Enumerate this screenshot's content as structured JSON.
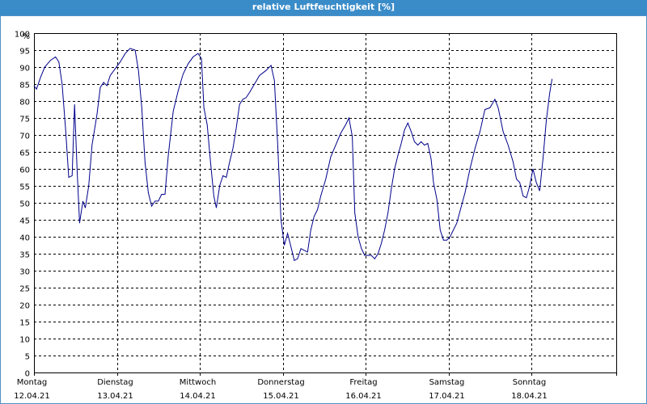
{
  "window": {
    "title": "relative Luftfeuchtigkeit [%]"
  },
  "colors": {
    "titlebar": "#3a8cc9",
    "line": "#00008b",
    "grid": "#000000"
  },
  "chart_data": {
    "type": "line",
    "title": "relative Luftfeuchtigkeit [%]",
    "ylabel": "%",
    "xlabel": "",
    "ylim": [
      0,
      100
    ],
    "yticks": [
      0,
      5,
      10,
      15,
      20,
      25,
      30,
      35,
      40,
      45,
      50,
      55,
      60,
      65,
      70,
      75,
      80,
      85,
      90,
      95,
      100
    ],
    "xlim": [
      0,
      7
    ],
    "grid": true,
    "day_labels": [
      {
        "day": "Montag",
        "date": "12.04.21"
      },
      {
        "day": "Dienstag",
        "date": "13.04.21"
      },
      {
        "day": "Mittwoch",
        "date": "14.04.21"
      },
      {
        "day": "Donnerstag",
        "date": "15.04.21"
      },
      {
        "day": "Freitag",
        "date": "16.04.21"
      },
      {
        "day": "Samstag",
        "date": "17.04.21"
      },
      {
        "day": "Sonntag",
        "date": "18.04.21"
      }
    ],
    "series": [
      {
        "values": [
          [
            0.0,
            84.5
          ],
          [
            0.03,
            83.5
          ],
          [
            0.08,
            87
          ],
          [
            0.13,
            90
          ],
          [
            0.2,
            92
          ],
          [
            0.26,
            93
          ],
          [
            0.3,
            91.5
          ],
          [
            0.34,
            85
          ],
          [
            0.38,
            72
          ],
          [
            0.42,
            57.5
          ],
          [
            0.46,
            58
          ],
          [
            0.49,
            79
          ],
          [
            0.52,
            60
          ],
          [
            0.55,
            44
          ],
          [
            0.59,
            50.5
          ],
          [
            0.62,
            48.5
          ],
          [
            0.66,
            55
          ],
          [
            0.7,
            67
          ],
          [
            0.76,
            76
          ],
          [
            0.8,
            84
          ],
          [
            0.84,
            85.5
          ],
          [
            0.88,
            84.5
          ],
          [
            0.92,
            87.5
          ],
          [
            0.98,
            89.5
          ],
          [
            1.04,
            91.5
          ],
          [
            1.1,
            94
          ],
          [
            1.16,
            95.5
          ],
          [
            1.22,
            95
          ],
          [
            1.26,
            89
          ],
          [
            1.3,
            78
          ],
          [
            1.34,
            62
          ],
          [
            1.38,
            53
          ],
          [
            1.42,
            49
          ],
          [
            1.46,
            50.5
          ],
          [
            1.5,
            50.5
          ],
          [
            1.54,
            52.5
          ],
          [
            1.58,
            52.5
          ],
          [
            1.62,
            64
          ],
          [
            1.68,
            77
          ],
          [
            1.74,
            83
          ],
          [
            1.8,
            88
          ],
          [
            1.86,
            91
          ],
          [
            1.92,
            93
          ],
          [
            1.98,
            94
          ],
          [
            2.02,
            92.5
          ],
          [
            2.05,
            78
          ],
          [
            2.09,
            73
          ],
          [
            2.13,
            62
          ],
          [
            2.17,
            52
          ],
          [
            2.2,
            48.5
          ],
          [
            2.24,
            55
          ],
          [
            2.28,
            58
          ],
          [
            2.32,
            57.5
          ],
          [
            2.36,
            62
          ],
          [
            2.4,
            66
          ],
          [
            2.44,
            72
          ],
          [
            2.48,
            79
          ],
          [
            2.52,
            80.5
          ],
          [
            2.56,
            81
          ],
          [
            2.6,
            82.5
          ],
          [
            2.66,
            85
          ],
          [
            2.72,
            87.5
          ],
          [
            2.8,
            89
          ],
          [
            2.86,
            90.5
          ],
          [
            2.9,
            86
          ],
          [
            2.94,
            67
          ],
          [
            2.98,
            45
          ],
          [
            3.02,
            37.5
          ],
          [
            3.06,
            41
          ],
          [
            3.1,
            37
          ],
          [
            3.14,
            33
          ],
          [
            3.18,
            33.5
          ],
          [
            3.22,
            36.5
          ],
          [
            3.26,
            36
          ],
          [
            3.3,
            35.5
          ],
          [
            3.34,
            42
          ],
          [
            3.38,
            46
          ],
          [
            3.42,
            48
          ],
          [
            3.46,
            52
          ],
          [
            3.52,
            57
          ],
          [
            3.58,
            63.5
          ],
          [
            3.64,
            67
          ],
          [
            3.7,
            70.5
          ],
          [
            3.76,
            73
          ],
          [
            3.8,
            75
          ],
          [
            3.84,
            69.5
          ],
          [
            3.87,
            47
          ],
          [
            3.91,
            40
          ],
          [
            3.95,
            36.5
          ],
          [
            3.99,
            34.5
          ],
          [
            4.03,
            34.5
          ],
          [
            4.07,
            34.5
          ],
          [
            4.11,
            33.5
          ],
          [
            4.15,
            35
          ],
          [
            4.19,
            38
          ],
          [
            4.23,
            42
          ],
          [
            4.27,
            47
          ],
          [
            4.31,
            54
          ],
          [
            4.35,
            60
          ],
          [
            4.39,
            64
          ],
          [
            4.43,
            67.5
          ],
          [
            4.47,
            71.5
          ],
          [
            4.51,
            73.5
          ],
          [
            4.55,
            71
          ],
          [
            4.59,
            68
          ],
          [
            4.63,
            67
          ],
          [
            4.67,
            68
          ],
          [
            4.71,
            67
          ],
          [
            4.75,
            67.5
          ],
          [
            4.79,
            63
          ],
          [
            4.82,
            56
          ],
          [
            4.86,
            51
          ],
          [
            4.9,
            42
          ],
          [
            4.94,
            39
          ],
          [
            4.98,
            39
          ],
          [
            5.02,
            40
          ],
          [
            5.06,
            42
          ],
          [
            5.1,
            44
          ],
          [
            5.15,
            48.5
          ],
          [
            5.2,
            53
          ],
          [
            5.26,
            60
          ],
          [
            5.32,
            66
          ],
          [
            5.38,
            71
          ],
          [
            5.44,
            77.5
          ],
          [
            5.5,
            78
          ],
          [
            5.56,
            80.5
          ],
          [
            5.6,
            78
          ],
          [
            5.66,
            71
          ],
          [
            5.72,
            67
          ],
          [
            5.78,
            62
          ],
          [
            5.82,
            57
          ],
          [
            5.86,
            56
          ],
          [
            5.9,
            52
          ],
          [
            5.94,
            51.5
          ],
          [
            5.98,
            55
          ],
          [
            6.02,
            60
          ],
          [
            6.06,
            56
          ],
          [
            6.1,
            53.5
          ],
          [
            6.14,
            63
          ],
          [
            6.18,
            74
          ],
          [
            6.22,
            82
          ],
          [
            6.25,
            86.5
          ]
        ]
      }
    ]
  }
}
